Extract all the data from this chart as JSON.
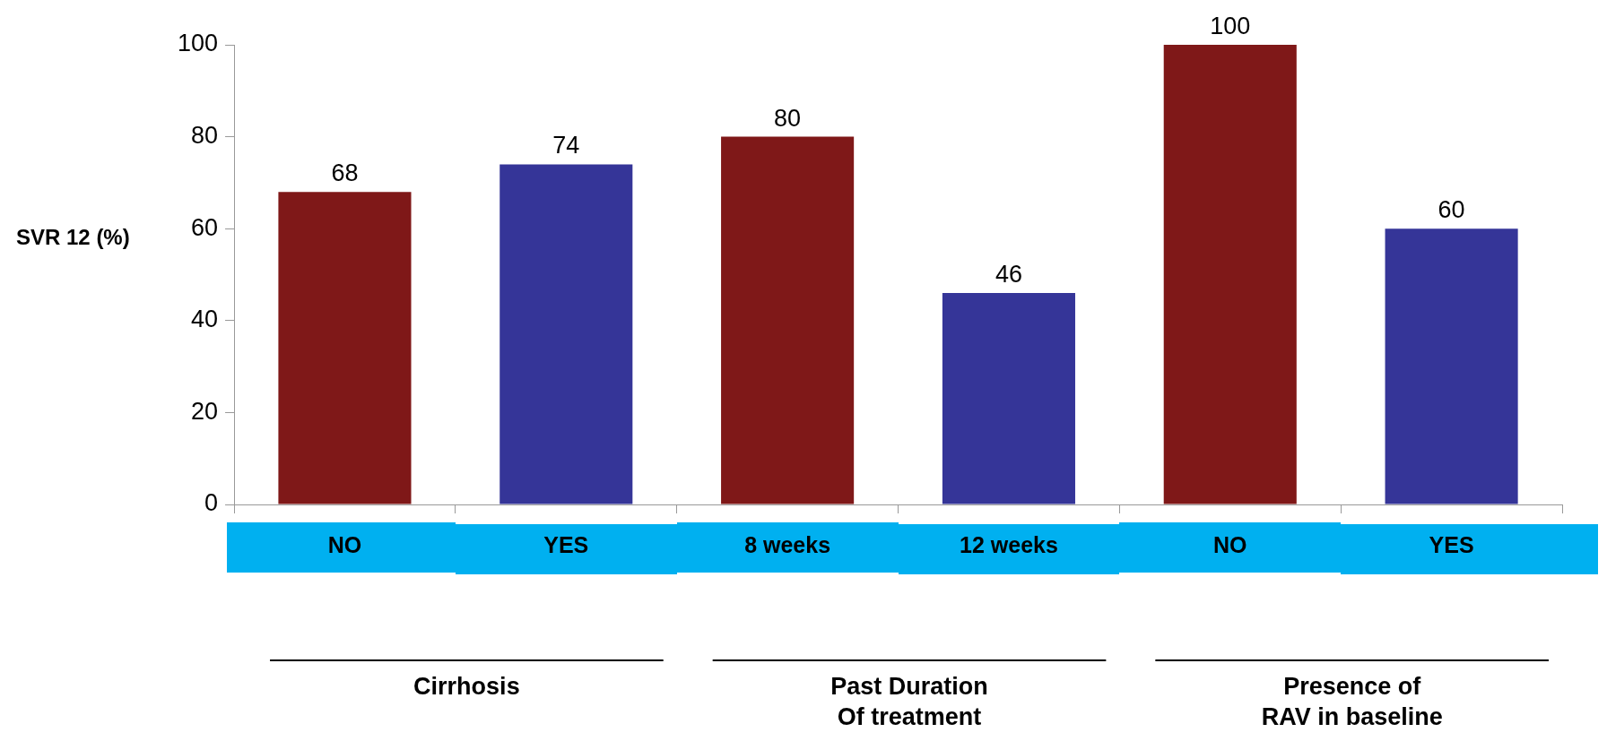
{
  "chart_data": {
    "type": "bar",
    "ylabel": "SVR 12 (%)",
    "categories": [
      "NO",
      "YES",
      "8 weeks",
      "12 weeks",
      "NO",
      "YES"
    ],
    "values": [
      68,
      74,
      80,
      46,
      100,
      60
    ],
    "colors": [
      "#7f1818",
      "#353598",
      "#7f1818",
      "#353598",
      "#7f1818",
      "#353598"
    ],
    "ylim": [
      0,
      100
    ],
    "yticks": [
      0,
      20,
      40,
      60,
      80,
      100
    ],
    "grid": false,
    "legend": false,
    "data_labels": true,
    "annotations": [
      "Cirrhosis",
      "Past Duration\nOf treatment",
      "Presence of\nRAV in baseline"
    ]
  }
}
